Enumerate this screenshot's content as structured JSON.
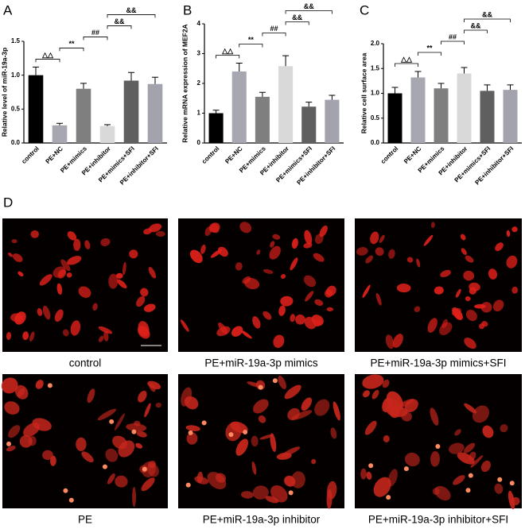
{
  "chart_data": [
    {
      "type": "bar",
      "label": "A",
      "ylabel": "Relative level of miR-19a-3p",
      "categories": [
        "control",
        "PE+NC",
        "PE+mimics",
        "PE+inhibitor",
        "PE+mimics+SFI",
        "PE+inhibitor+SFI"
      ],
      "values": [
        1.0,
        0.26,
        0.8,
        0.25,
        0.92,
        0.87
      ],
      "errors": [
        0.12,
        0.03,
        0.08,
        0.02,
        0.12,
        0.1
      ],
      "colors": [
        "#000000",
        "#a7a7b2",
        "#7f7f7f",
        "#d9d9d9",
        "#5f5f5f",
        "#a3a3ad"
      ],
      "ylim": [
        0,
        1.5
      ],
      "yticks": [
        {
          "value": 0,
          "label": "0.0"
        },
        0.5,
        {
          "value": 1,
          "label": "1.0"
        },
        1.5
      ],
      "annotations": [
        {
          "text": "△△",
          "from": 0,
          "to": 1
        },
        {
          "text": "**",
          "from": 1,
          "to": 2
        },
        {
          "text": "##",
          "from": 2,
          "to": 3
        },
        {
          "text": "&&",
          "from": 3,
          "to": 4
        },
        {
          "text": "&&",
          "from": 3,
          "to": 5
        }
      ]
    },
    {
      "type": "bar",
      "label": "B",
      "ylabel": "Relative mRNA expression of MEF2A",
      "categories": [
        "control",
        "PE+NC",
        "PE+mimics",
        "PE+inhibitor",
        "PE+mimics+SFI",
        "PE+inhibitor+SFI"
      ],
      "values": [
        1.0,
        2.4,
        1.55,
        2.58,
        1.22,
        1.45
      ],
      "errors": [
        0.1,
        0.28,
        0.15,
        0.35,
        0.15,
        0.15
      ],
      "colors": [
        "#000000",
        "#a7a7b2",
        "#7f7f7f",
        "#d9d9d9",
        "#5f5f5f",
        "#a3a3ad"
      ],
      "ylim": [
        0,
        4
      ],
      "yticks": [
        0,
        1,
        2,
        3,
        4
      ],
      "annotations": [
        {
          "text": "△△",
          "from": 0,
          "to": 1
        },
        {
          "text": "**",
          "from": 1,
          "to": 2
        },
        {
          "text": "##",
          "from": 2,
          "to": 3
        },
        {
          "text": "&&",
          "from": 3,
          "to": 4
        },
        {
          "text": "&&",
          "from": 3,
          "to": 5
        }
      ]
    },
    {
      "type": "bar",
      "label": "C",
      "ylabel": "Relative cell surface area",
      "categories": [
        "control",
        "PE+NC",
        "PE+mimics",
        "PE+inhibitor",
        "PE+mimics+SFI",
        "PE+inhibitor+SFI"
      ],
      "values": [
        1.0,
        1.32,
        1.1,
        1.4,
        1.05,
        1.07
      ],
      "errors": [
        0.12,
        0.12,
        0.1,
        0.12,
        0.12,
        0.1
      ],
      "colors": [
        "#000000",
        "#a7a7b2",
        "#7f7f7f",
        "#d9d9d9",
        "#5f5f5f",
        "#a3a3ad"
      ],
      "ylim": [
        0,
        2
      ],
      "yticks": [
        {
          "value": 0,
          "label": "0.0"
        },
        0.5,
        {
          "value": 1,
          "label": "1.0"
        },
        1.5,
        {
          "value": 2,
          "label": "2.0"
        }
      ],
      "annotations": [
        {
          "text": "△△",
          "from": 0,
          "to": 1
        },
        {
          "text": "**",
          "from": 1,
          "to": 2
        },
        {
          "text": "##",
          "from": 2,
          "to": 3
        },
        {
          "text": "&&",
          "from": 3,
          "to": 4
        },
        {
          "text": "&&",
          "from": 3,
          "to": 5
        }
      ]
    }
  ],
  "panel_d": {
    "label": "D",
    "images": [
      {
        "caption": "control"
      },
      {
        "caption": "PE+miR-19a-3p mimics"
      },
      {
        "caption": "PE+miR-19a-3p mimics+SFI"
      },
      {
        "caption": "PE"
      },
      {
        "caption": "PE+miR-19a-3p inhibitor"
      },
      {
        "caption": "PE+miR-19a-3p inhibitor+SFI"
      }
    ]
  }
}
